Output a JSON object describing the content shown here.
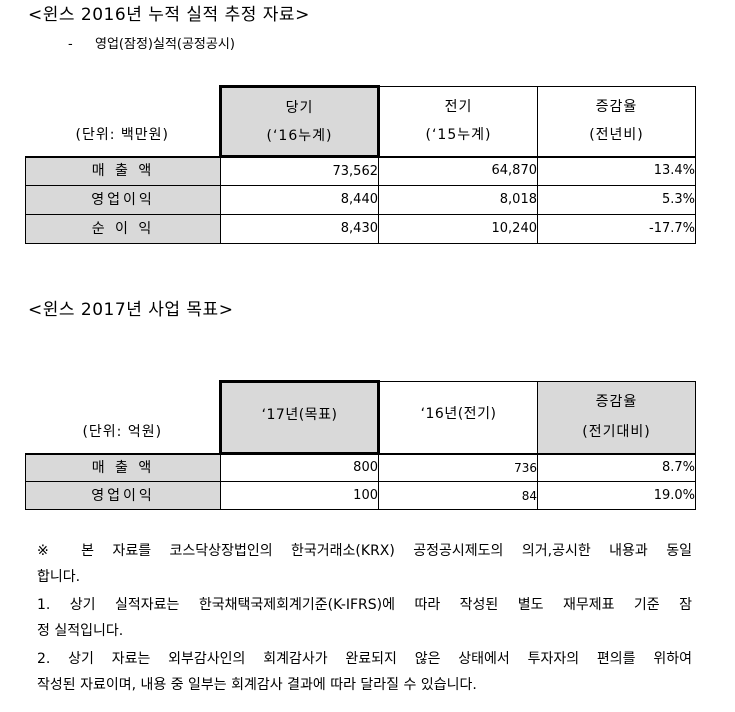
{
  "section1": {
    "title": "<윈스 2016년 누적 실적 추정 자료>",
    "subtitle_bullet": "-",
    "subtitle": "영업(잠정)실적(공정공시)",
    "table": {
      "unit": "(단위: 백만원)",
      "headers": [
        {
          "label": "당기",
          "sub": "(‘16누계)"
        },
        {
          "label": "전기",
          "sub": "(‘15누계)"
        },
        {
          "label": "증감율",
          "sub": "(전년비)"
        }
      ],
      "rows": [
        {
          "label": "매 출 액",
          "values": [
            "73,562",
            "64,870",
            "13.4%"
          ]
        },
        {
          "label": "영업이익",
          "values": [
            "8,440",
            "8,018",
            "5.3%"
          ]
        },
        {
          "label": "순 이 익",
          "values": [
            "8,430",
            "10,240",
            "-17.7%"
          ]
        }
      ]
    }
  },
  "section2": {
    "title": "<윈스 2017년 사업 목표>",
    "table": {
      "unit": "(단위: 억원)",
      "headers": [
        {
          "label": "‘17년(목표)"
        },
        {
          "label": "‘16년(전기)"
        },
        {
          "label": "증감율",
          "sub": "(전기대비)"
        }
      ],
      "rows": [
        {
          "label": "매 출 액",
          "values": [
            "800",
            "736",
            "8.7%"
          ]
        },
        {
          "label": "영업이익",
          "values": [
            "100",
            "84",
            "19.0%"
          ]
        }
      ]
    }
  },
  "notes": [
    {
      "lines": [
        "※ 본 자료를 코스닥상장법인의 한국거래소(KRX) 공정공시제도의 의거,공시한 내용과 동일",
        "합니다."
      ]
    },
    {
      "lines": [
        "1. 상기 실적자료는 한국채택국제회계기준(K-IFRS)에 따라 작성된 별도 재무제표 기준 잠",
        "정 실적입니다."
      ]
    },
    {
      "lines": [
        "2. 상기 자료는 외부감사인의 회계감사가 완료되지 않은 상태에서 투자자의 편의를 위하여",
        "작성된 자료이며, 내용 중 일부는 회계감사 결과에 따라 달라질 수 있습니다."
      ]
    }
  ],
  "colors": {
    "header_fill": "#d9d9d9",
    "label_fill": "#d9d9d9",
    "text": "#000000",
    "border": "#000000"
  }
}
